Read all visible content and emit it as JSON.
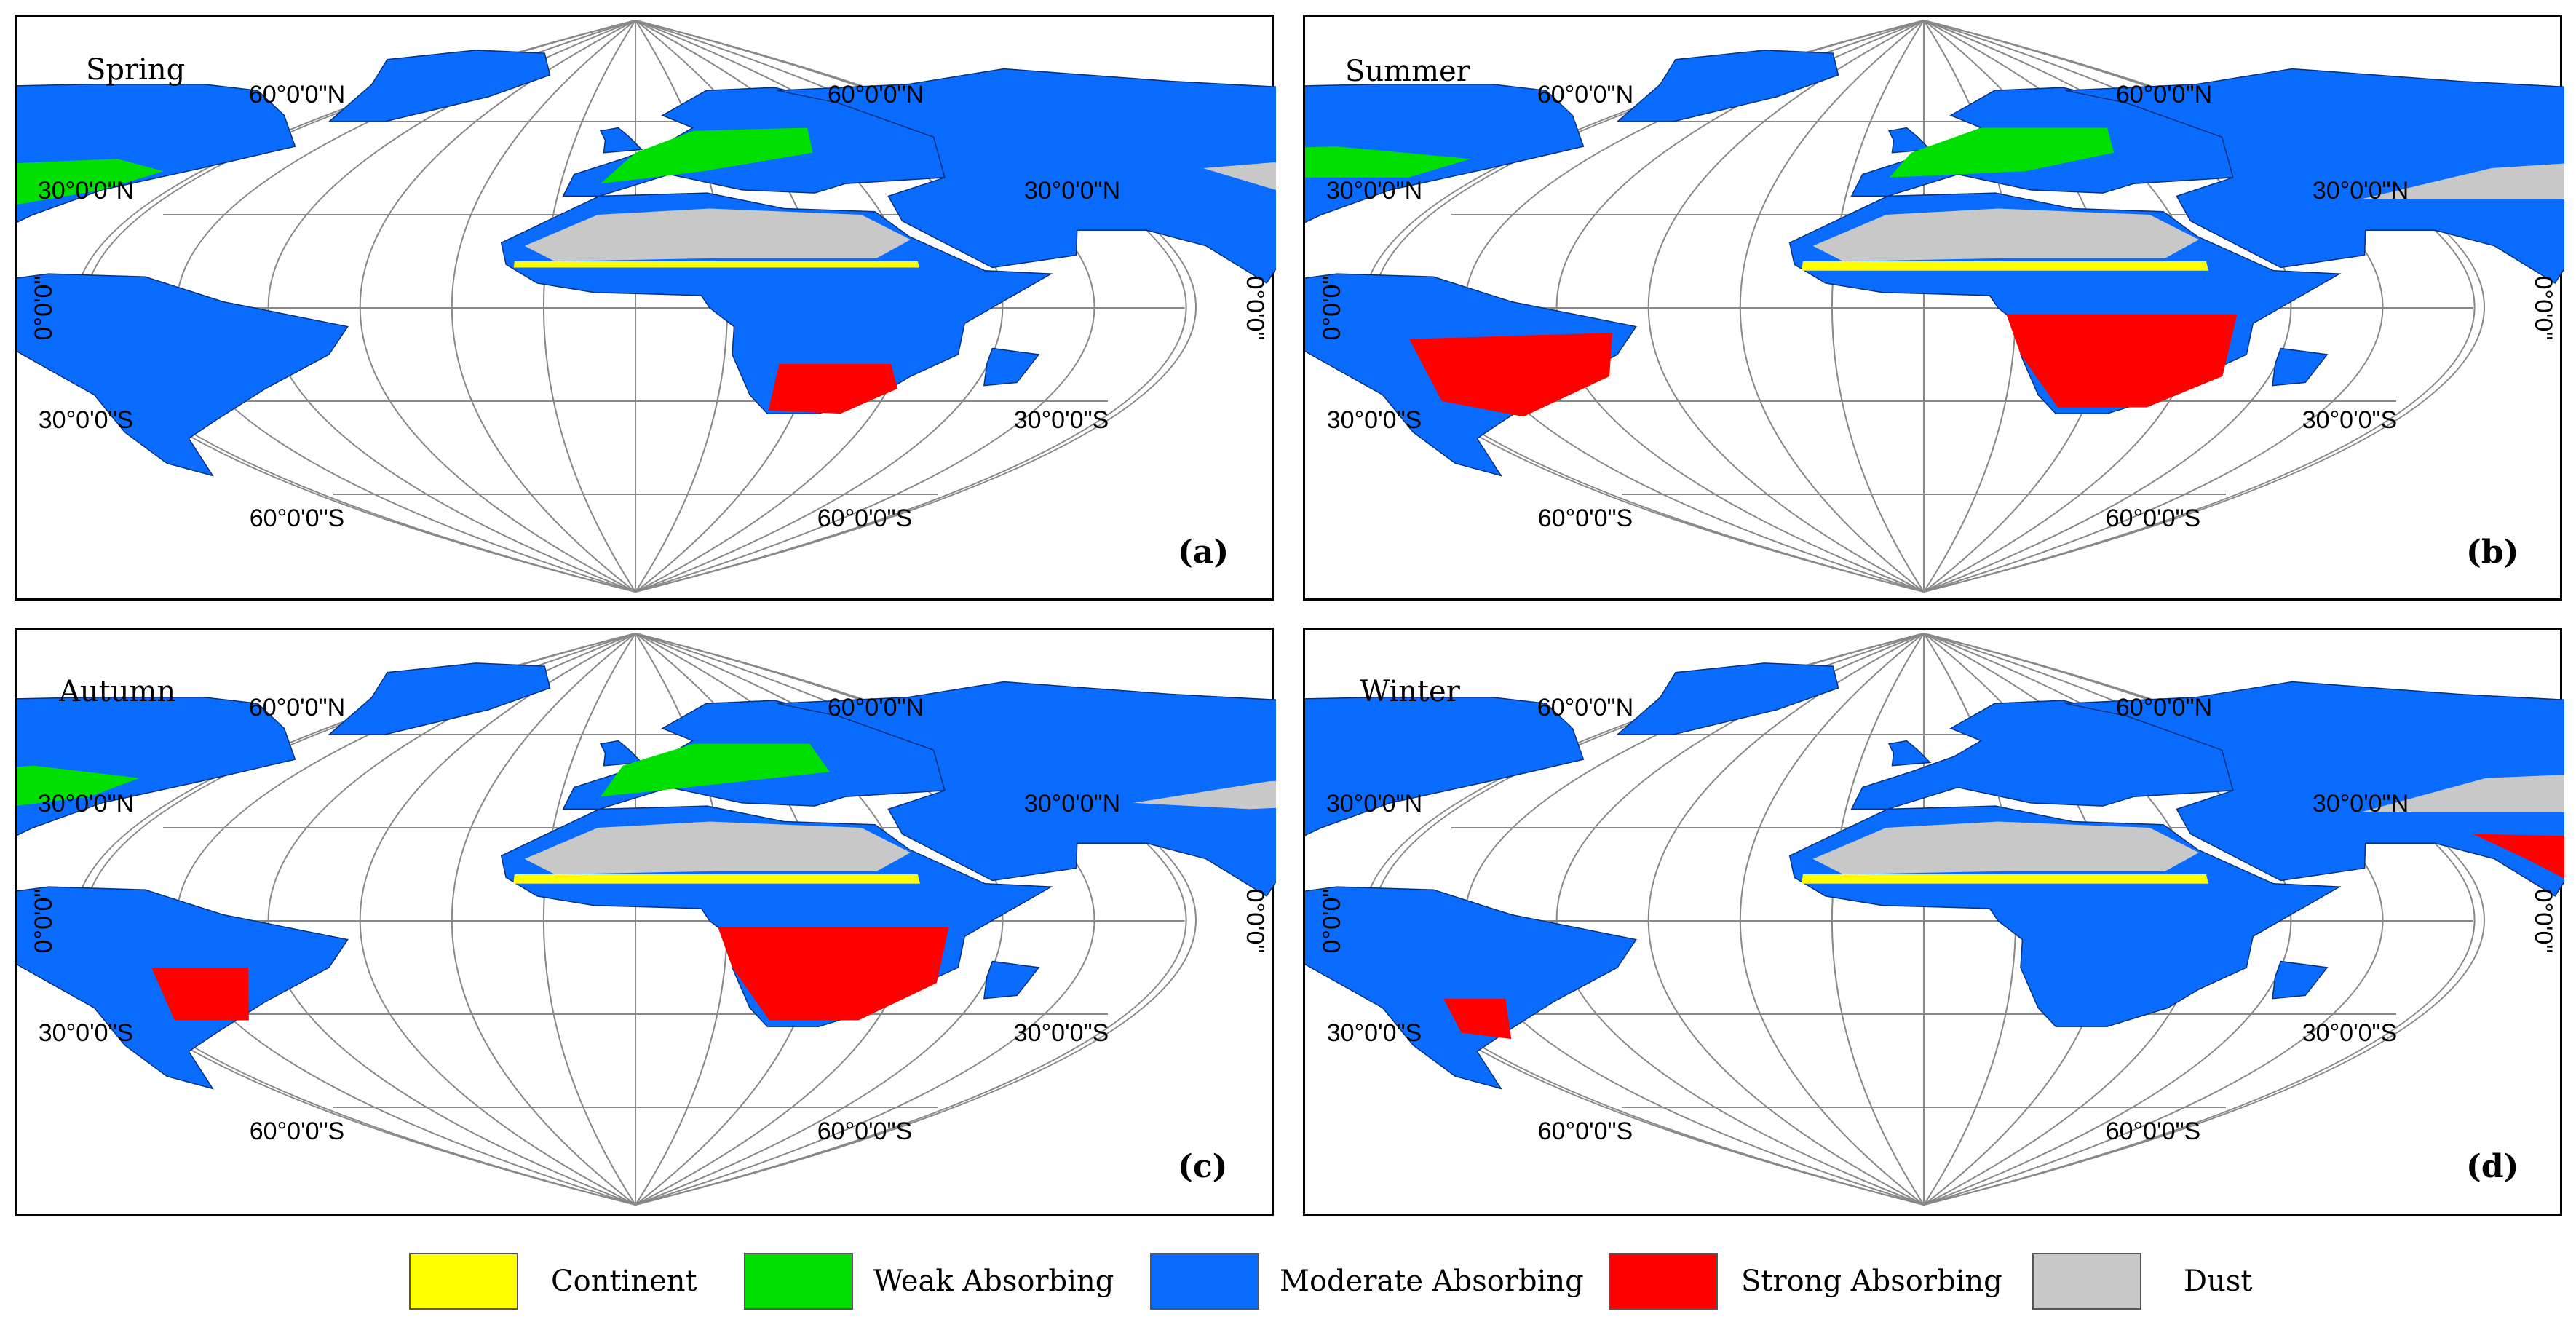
{
  "panels": [
    {
      "season": "Spring",
      "label": "(a)"
    },
    {
      "season": "Summer",
      "label": "(b)"
    },
    {
      "season": "Autumn",
      "label": "(c)"
    },
    {
      "season": "Winter",
      "label": "(d)"
    }
  ],
  "graticule": {
    "lat_60n": "60°0'0\"N",
    "lat_30n": "30°0'0\"N",
    "lat_0": "0°0'0\"",
    "lat_30s": "30°0'0\"S",
    "lat_60s": "60°0'0\"S"
  },
  "legend": [
    {
      "label": "Continent",
      "color": "#ffff00"
    },
    {
      "label": "Weak Absorbing",
      "color": "#00e000"
    },
    {
      "label": "Moderate Absorbing",
      "color": "#0a6cff"
    },
    {
      "label": "Strong Absorbing",
      "color": "#ff0000"
    },
    {
      "label": "Dust",
      "color": "#c8c8c8"
    }
  ]
}
